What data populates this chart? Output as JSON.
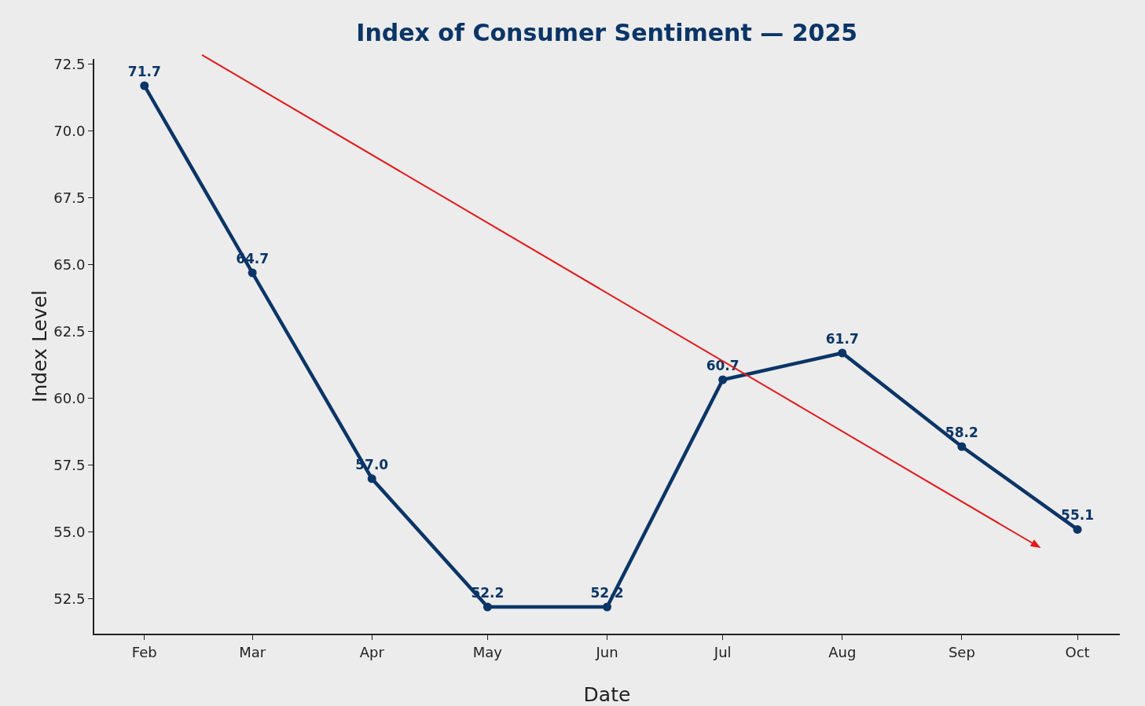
{
  "chart_data": {
    "type": "line",
    "title": "Index of Consumer Sentiment — 2025",
    "xlabel": "Date",
    "ylabel": "Index Level",
    "x": [
      "2025-02-01",
      "2025-03-01",
      "2025-04-01",
      "2025-05-01",
      "2025-06-01",
      "2025-07-01",
      "2025-08-01",
      "2025-09-01",
      "2025-10-01"
    ],
    "series": [
      {
        "color": "#0b3566",
        "values": [
          71.7,
          64.7,
          57.0,
          52.2,
          52.2,
          60.7,
          61.7,
          58.2,
          55.1
        ],
        "value_labels": [
          "71.7",
          "64.7",
          "57.0",
          "52.2",
          "52.2",
          "60.7",
          "61.7",
          "58.2",
          "55.1"
        ]
      }
    ],
    "marker": "circle",
    "grid": false,
    "xlim": [
      "2025-01-19",
      "2025-10-12"
    ],
    "xticks": [
      {
        "value": "2025-02-01",
        "label": "Feb"
      },
      {
        "value": "2025-03-01",
        "label": "Mar"
      },
      {
        "value": "2025-04-01",
        "label": "Apr"
      },
      {
        "value": "2025-05-01",
        "label": "May"
      },
      {
        "value": "2025-06-01",
        "label": "Jun"
      },
      {
        "value": "2025-07-01",
        "label": "Jul"
      },
      {
        "value": "2025-08-01",
        "label": "Aug"
      },
      {
        "value": "2025-09-01",
        "label": "Sep"
      },
      {
        "value": "2025-10-01",
        "label": "Oct"
      }
    ],
    "ylim": [
      51.2,
      72.7
    ],
    "yticks": [
      {
        "value": 52.5,
        "label": "52.5"
      },
      {
        "value": 55,
        "label": "55.0"
      },
      {
        "value": 57.5,
        "label": "57.5"
      },
      {
        "value": 60,
        "label": "60.0"
      },
      {
        "value": 62.5,
        "label": "62.5"
      },
      {
        "value": 65,
        "label": "65.0"
      },
      {
        "value": 67.5,
        "label": "67.5"
      },
      {
        "value": 70,
        "label": "70.0"
      },
      {
        "value": 72.5,
        "label": "72.5"
      }
    ]
  }
}
